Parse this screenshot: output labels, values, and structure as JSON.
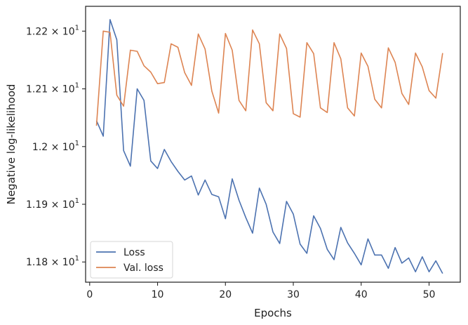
{
  "chart_data": {
    "type": "line",
    "xlabel": "Epochs",
    "ylabel": "Negative log-likelihood",
    "xlim": [
      -0.6,
      54.6
    ],
    "ylim": [
      11.765,
      12.243
    ],
    "x_ticks": [
      0,
      10,
      20,
      30,
      40,
      50
    ],
    "y_ticks": [
      {
        "value": 11.8,
        "label": "1.18 × 10",
        "exp": "1"
      },
      {
        "value": 11.9,
        "label": "1.19 × 10",
        "exp": "1"
      },
      {
        "value": 12.0,
        "label": "1.2 × 10",
        "exp": "1"
      },
      {
        "value": 12.1,
        "label": "1.21 × 10",
        "exp": "1"
      },
      {
        "value": 12.2,
        "label": "1.22 × 10",
        "exp": "1"
      }
    ],
    "grid": false,
    "legend_position": "lower-left",
    "x": [
      1,
      2,
      3,
      4,
      5,
      6,
      7,
      8,
      9,
      10,
      11,
      12,
      13,
      14,
      15,
      16,
      17,
      18,
      19,
      20,
      21,
      22,
      23,
      24,
      25,
      26,
      27,
      28,
      29,
      30,
      31,
      32,
      33,
      34,
      35,
      36,
      37,
      38,
      39,
      40,
      41,
      42,
      43,
      44,
      45,
      46,
      47,
      48,
      49,
      50,
      51,
      52
    ],
    "series": [
      {
        "name": "Loss",
        "color": "#4c72b0",
        "values": [
          12.045,
          12.018,
          12.22,
          12.185,
          11.993,
          11.966,
          12.1,
          12.08,
          11.975,
          11.962,
          11.995,
          11.974,
          11.957,
          11.942,
          11.949,
          11.916,
          11.942,
          11.917,
          11.913,
          11.875,
          11.944,
          11.907,
          11.877,
          11.85,
          11.928,
          11.9,
          11.852,
          11.832,
          11.905,
          11.883,
          11.831,
          11.815,
          11.88,
          11.858,
          11.822,
          11.804,
          11.86,
          11.833,
          11.815,
          11.795,
          11.84,
          11.812,
          11.812,
          11.789,
          11.825,
          11.798,
          11.807,
          11.783,
          11.809,
          11.783,
          11.802,
          11.78
        ]
      },
      {
        "name": "Val. loss",
        "color": "#dd8452",
        "values": [
          12.036,
          12.2,
          12.198,
          12.089,
          12.07,
          12.167,
          12.165,
          12.14,
          12.129,
          12.109,
          12.111,
          12.178,
          12.172,
          12.128,
          12.106,
          12.195,
          12.169,
          12.096,
          12.058,
          12.196,
          12.167,
          12.08,
          12.062,
          12.202,
          12.178,
          12.076,
          12.062,
          12.195,
          12.17,
          12.057,
          12.051,
          12.18,
          12.161,
          12.067,
          12.059,
          12.18,
          12.152,
          12.067,
          12.053,
          12.162,
          12.139,
          12.082,
          12.067,
          12.171,
          12.146,
          12.092,
          12.073,
          12.162,
          12.138,
          12.097,
          12.084,
          12.162
        ]
      }
    ]
  }
}
